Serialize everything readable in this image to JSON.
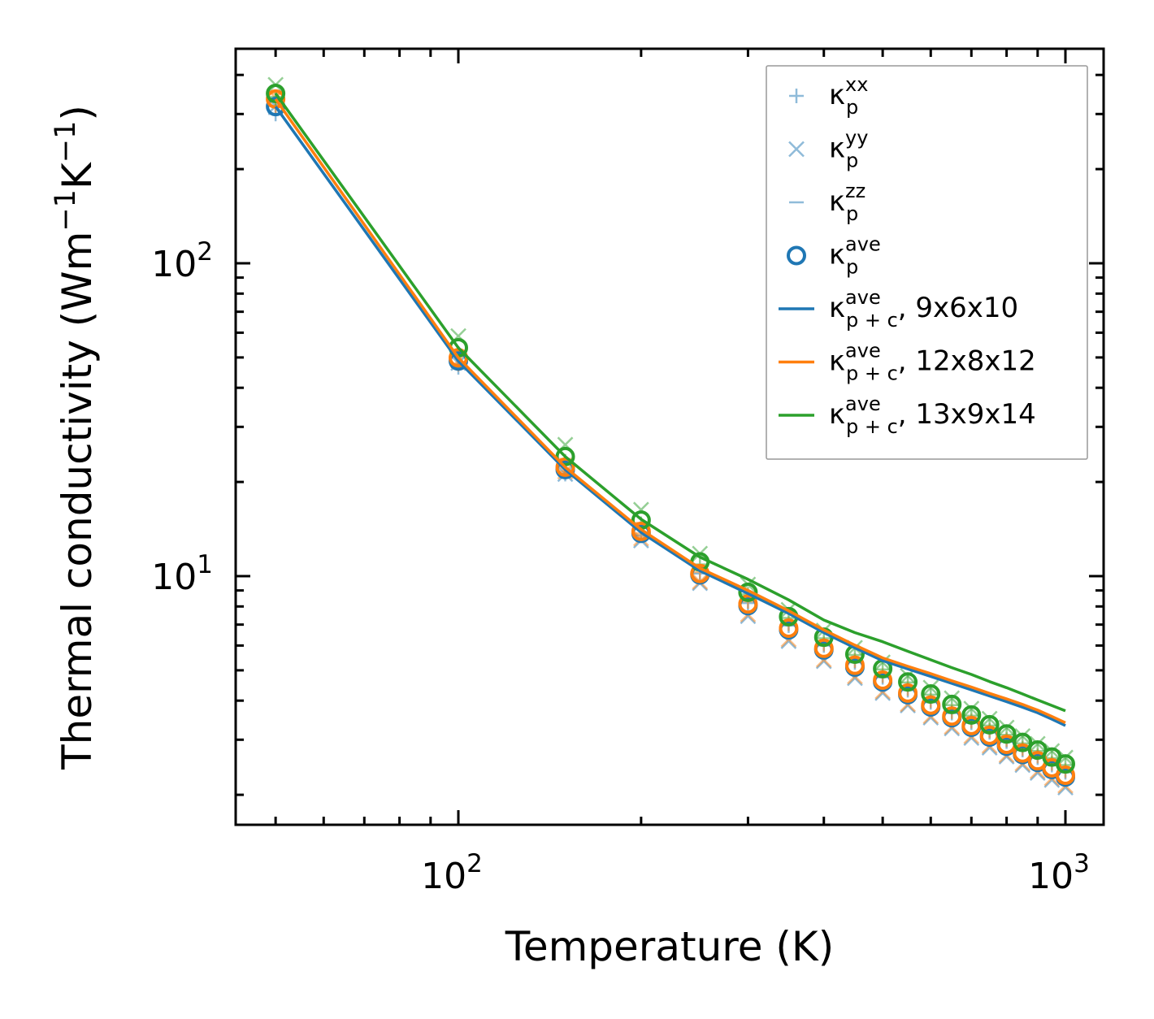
{
  "chart_data": {
    "type": "line",
    "xlabel": "Temperature (K)",
    "ylabel_parts": {
      "main": "Thermal conductivity (Wm",
      "sup1": "−1",
      "mid": "K",
      "sup2": "−1",
      "end": ")"
    },
    "xscale": "log",
    "yscale": "log",
    "xlim": [
      43,
      1156
    ],
    "ylim": [
      1.6,
      485
    ],
    "x_ticks": [
      {
        "value": 100,
        "base": "10",
        "exp": "2"
      },
      {
        "value": 1000,
        "base": "10",
        "exp": "3"
      }
    ],
    "y_ticks": [
      {
        "value": 10,
        "base": "10",
        "exp": "1"
      },
      {
        "value": 100,
        "base": "10",
        "exp": "2"
      }
    ],
    "legend_position": "top-right",
    "x": [
      50,
      100,
      150,
      200,
      250,
      300,
      350,
      400,
      450,
      500,
      550,
      600,
      650,
      700,
      750,
      800,
      850,
      900,
      950,
      1000
    ],
    "legend": [
      {
        "sym": "κ",
        "sub": "p",
        "sup": "xx",
        "suffix": "",
        "marker": "plus",
        "color": "#1f77b4"
      },
      {
        "sym": "κ",
        "sub": "p",
        "sup": "yy",
        "suffix": "",
        "marker": "x",
        "color": "#1f77b4"
      },
      {
        "sym": "κ",
        "sub": "p",
        "sup": "zz",
        "suffix": "",
        "marker": "minus",
        "color": "#1f77b4"
      },
      {
        "sym": "κ",
        "sub": "p",
        "sup": "ave",
        "suffix": "",
        "marker": "circle",
        "color": "#1f77b4"
      },
      {
        "sym": "κ",
        "sub": "p + c",
        "sup": "ave",
        "suffix": ", 9x6x10",
        "marker": "line",
        "color": "#1f77b4"
      },
      {
        "sym": "κ",
        "sub": "p + c",
        "sup": "ave",
        "suffix": ", 12x8x12",
        "marker": "line",
        "color": "#ff7f0e"
      },
      {
        "sym": "κ",
        "sub": "p + c",
        "sup": "ave",
        "suffix": ", 13x9x14",
        "marker": "line",
        "color": "#2ca02c"
      }
    ],
    "series": [
      {
        "name": "9x6x10",
        "color": "#1f77b4",
        "xx": [
          300,
          46.5,
          21.2,
          13.5,
          10.2,
          8.2,
          6.95,
          6.0,
          5.3,
          4.75,
          4.32,
          3.95,
          3.65,
          3.4,
          3.17,
          2.96,
          2.78,
          2.63,
          2.49,
          2.36
        ],
        "yy": [
          318,
          48,
          21.2,
          13.0,
          9.5,
          7.45,
          6.2,
          5.35,
          4.72,
          4.23,
          3.86,
          3.53,
          3.26,
          3.04,
          2.83,
          2.65,
          2.49,
          2.35,
          2.23,
          2.11
        ],
        "zz": [
          333,
          51.5,
          23.3,
          14.6,
          10.6,
          8.5,
          7.1,
          6.1,
          5.35,
          4.8,
          4.37,
          4.0,
          3.69,
          3.44,
          3.2,
          2.99,
          2.81,
          2.66,
          2.52,
          2.39
        ],
        "ave": [
          317,
          48.7,
          21.9,
          13.7,
          10.1,
          8.05,
          6.74,
          5.81,
          5.12,
          4.59,
          4.18,
          3.82,
          3.53,
          3.29,
          3.06,
          2.86,
          2.69,
          2.54,
          2.41,
          2.28
        ],
        "p_plus_c": [
          317,
          48.7,
          21.9,
          13.8,
          10.4,
          8.8,
          7.6,
          6.6,
          5.9,
          5.37,
          5.05,
          4.78,
          4.54,
          4.33,
          4.14,
          3.97,
          3.81,
          3.66,
          3.49,
          3.33
        ]
      },
      {
        "name": "12x8x12",
        "color": "#ff7f0e",
        "xx": [
          318,
          47.6,
          21.6,
          13.7,
          10.3,
          8.3,
          7.05,
          6.07,
          5.37,
          4.81,
          4.37,
          4.0,
          3.69,
          3.44,
          3.21,
          3.0,
          2.81,
          2.66,
          2.52,
          2.39
        ],
        "yy": [
          338,
          48.9,
          21.6,
          13.2,
          9.6,
          7.55,
          6.28,
          5.41,
          4.78,
          4.28,
          3.9,
          3.57,
          3.3,
          3.08,
          2.87,
          2.68,
          2.52,
          2.38,
          2.26,
          2.14
        ],
        "zz": [
          349,
          52.5,
          23.7,
          14.8,
          10.7,
          8.6,
          7.2,
          6.2,
          5.45,
          4.88,
          4.44,
          4.07,
          3.76,
          3.5,
          3.26,
          3.05,
          2.86,
          2.7,
          2.56,
          2.43
        ],
        "ave": [
          335,
          49.9,
          22.3,
          13.9,
          10.2,
          8.15,
          6.82,
          5.88,
          5.19,
          4.65,
          4.23,
          3.87,
          3.57,
          3.33,
          3.1,
          2.9,
          2.72,
          2.57,
          2.44,
          2.31
        ],
        "p_plus_c": [
          335,
          49.9,
          22.3,
          14.1,
          10.6,
          9.0,
          7.75,
          6.73,
          6.02,
          5.48,
          5.15,
          4.88,
          4.63,
          4.42,
          4.22,
          4.05,
          3.89,
          3.73,
          3.56,
          3.4
        ]
      },
      {
        "name": "13x9x14",
        "color": "#2ca02c",
        "xx": [
          335,
          51.5,
          23.3,
          14.7,
          10.9,
          8.75,
          7.35,
          6.33,
          5.6,
          5.03,
          4.57,
          4.18,
          3.87,
          3.58,
          3.33,
          3.11,
          2.92,
          2.76,
          2.62,
          2.49
        ],
        "yy": [
          372,
          58.5,
          26.3,
          16.3,
          11.8,
          9.4,
          7.8,
          6.7,
          5.9,
          5.3,
          4.8,
          4.4,
          4.07,
          3.77,
          3.5,
          3.28,
          3.08,
          2.91,
          2.76,
          2.63
        ],
        "zz": [
          340,
          51,
          22.8,
          14.3,
          10.6,
          8.5,
          7.1,
          6.1,
          5.4,
          4.85,
          4.4,
          4.03,
          3.73,
          3.45,
          3.22,
          3.0,
          2.82,
          2.67,
          2.54,
          2.41
        ],
        "ave": [
          349,
          53.7,
          24.1,
          15.1,
          11.1,
          8.88,
          7.42,
          6.38,
          5.63,
          5.06,
          4.59,
          4.2,
          3.89,
          3.6,
          3.35,
          3.13,
          2.94,
          2.78,
          2.64,
          2.51
        ],
        "p_plus_c": [
          349,
          53.7,
          24.1,
          15.2,
          11.5,
          9.77,
          8.4,
          7.24,
          6.6,
          6.17,
          5.75,
          5.4,
          5.1,
          4.85,
          4.6,
          4.4,
          4.2,
          4.02,
          3.86,
          3.71
        ]
      }
    ]
  }
}
